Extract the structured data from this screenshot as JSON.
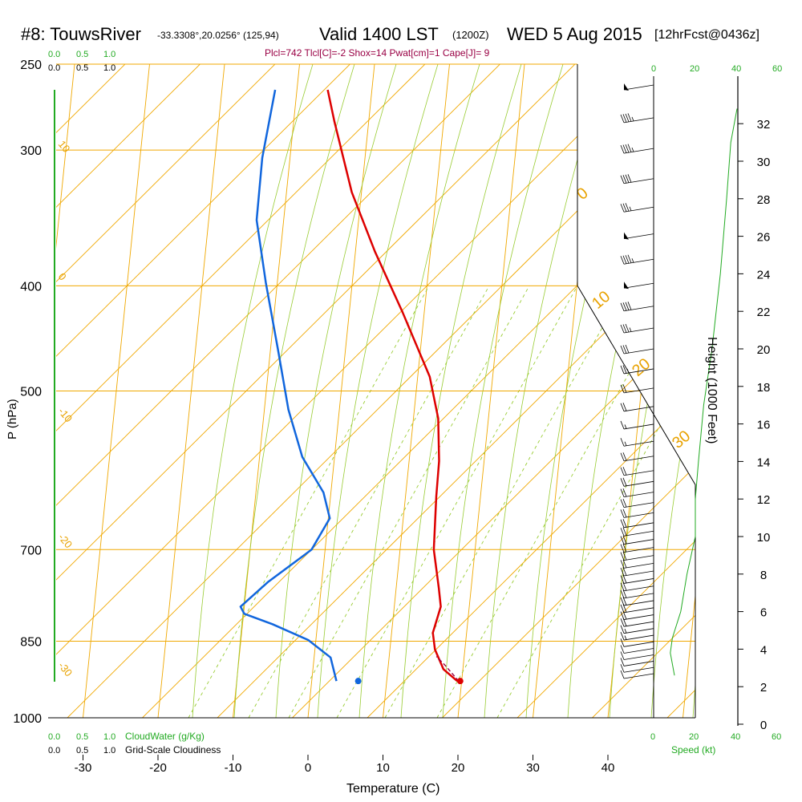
{
  "header": {
    "station": "#8: TouwsRiver",
    "coords": "-33.3308°,20.0256° (125,94)",
    "valid": "Valid 1400 LST",
    "utc": "(1200Z)",
    "date": "WED 5 Aug 2015",
    "forecast": "[12hrFcst@0436z]"
  },
  "indices": "Plcl=742 Tlcl[C]=-2 Shox=14 Pwat[cm]=1 Cape[J]= 9",
  "colors": {
    "temperature": "#dd0000",
    "dewpoint": "#1166dd",
    "isotherm_isobar": "#f0a800",
    "mixing_ratio": "#99cc33",
    "cloud": "#22aa22",
    "parcel": "#990044"
  },
  "scales": {
    "cloudwater_top": [
      "0.0",
      "0.5",
      "1.0"
    ],
    "cloudiness_top": [
      "0.0",
      "0.5",
      "1.0"
    ],
    "cloudwater_bottom": [
      "0.0",
      "0.5",
      "1.0"
    ],
    "cloudiness_bottom": [
      "0.0",
      "0.5",
      "1.0"
    ],
    "cloudwater_label": "CloudWater (g/Kg)",
    "cloudiness_label": "Grid-Scale Cloudiness",
    "speed_top_green": [
      "20",
      "40",
      "60"
    ],
    "speed_top_black": [
      "0"
    ],
    "speed_bottom_black": [
      "0",
      "20",
      "40"
    ],
    "speed_bottom_green": [
      "20",
      "60"
    ],
    "speed_label": "Speed (kt)"
  },
  "chart_data": {
    "type": "line",
    "title": "",
    "xlabel": "Temperature (C)",
    "ylabel": "P (hPa)",
    "y2label": "Height (1000 Feet)",
    "xlim": [
      -35,
      52
    ],
    "ylim": [
      1000,
      250
    ],
    "x_ticks": [
      "-30",
      "-20",
      "-10",
      "0",
      "10",
      "20",
      "30",
      "40"
    ],
    "x_tick_values": [
      -30,
      -20,
      -10,
      0,
      10,
      20,
      30,
      40
    ],
    "p_ticks": [
      "250",
      "300",
      "400",
      "500",
      "700",
      "850",
      "1000"
    ],
    "p_tick_values": [
      250,
      300,
      400,
      500,
      700,
      850,
      1000
    ],
    "height_ticks": [
      "0",
      "2",
      "4",
      "6",
      "8",
      "10",
      "12",
      "14",
      "16",
      "18",
      "20",
      "22",
      "24",
      "26",
      "28",
      "30",
      "32"
    ],
    "height_tick_values": [
      0,
      2,
      4,
      6,
      8,
      10,
      12,
      14,
      16,
      18,
      20,
      22,
      24,
      26,
      28,
      30,
      32
    ],
    "mixing_ratio_labels": [
      "1",
      "2",
      "3",
      "5",
      "8",
      "12",
      "20"
    ],
    "isotherm_labels": [
      "10",
      "0",
      "-10",
      "-20",
      "-30"
    ],
    "adiabat_labels": [
      "0",
      "10",
      "20",
      "30"
    ],
    "series": [
      {
        "name": "Temperature",
        "points": [
          [
            -5.9,
            264
          ],
          [
            -4.6,
            282
          ],
          [
            -1.3,
            328
          ],
          [
            2.6,
            372
          ],
          [
            7.1,
            423
          ],
          [
            11.6,
            485
          ],
          [
            13.3,
            530
          ],
          [
            14,
            580
          ],
          [
            14.1,
            625
          ],
          [
            14.5,
            700
          ],
          [
            15.7,
            760
          ],
          [
            16.2,
            790
          ],
          [
            15.5,
            835
          ],
          [
            16,
            865
          ],
          [
            17.4,
            902
          ],
          [
            19.4,
            925
          ]
        ]
      },
      {
        "name": "Dewpoint",
        "points": [
          [
            -12.9,
            264
          ],
          [
            -13.7,
            305
          ],
          [
            -13.6,
            348
          ],
          [
            -11.5,
            398
          ],
          [
            -9,
            458
          ],
          [
            -6.8,
            520
          ],
          [
            -4.3,
            575
          ],
          [
            -1,
            620
          ],
          [
            0.2,
            655
          ],
          [
            -1.8,
            700
          ],
          [
            -7.2,
            750
          ],
          [
            -10.5,
            790
          ],
          [
            -9.9,
            802
          ],
          [
            -6,
            820
          ],
          [
            -1,
            848
          ],
          [
            2.2,
            880
          ],
          [
            3.3,
            925
          ]
        ]
      }
    ],
    "surface_points": [
      {
        "name": "Surface dewpoint",
        "x": 6.2,
        "p": 925
      },
      {
        "name": "Surface temperature",
        "x": 19.8,
        "p": 925
      }
    ],
    "parcel_path": [
      [
        19.6,
        925
      ],
      [
        17.6,
        895
      ],
      [
        16.3,
        878
      ]
    ],
    "wind_barbs_pressures": [
      264,
      283,
      302,
      322,
      342,
      362,
      382,
      402,
      422,
      442,
      462,
      482,
      502,
      522,
      542,
      562,
      580,
      598,
      612,
      626,
      640,
      654,
      668,
      680,
      692,
      704,
      716,
      728,
      740,
      752,
      764,
      776,
      788,
      800,
      812,
      824,
      836,
      848,
      860,
      872,
      884,
      896,
      908,
      920
    ],
    "wind_barbs_speed_kt": [
      50,
      45,
      45,
      40,
      35,
      50,
      45,
      50,
      40,
      35,
      30,
      25,
      20,
      20,
      15,
      15,
      20,
      20,
      20,
      20,
      20,
      20,
      20,
      20,
      20,
      20,
      20,
      20,
      20,
      20,
      20,
      20,
      20,
      20,
      20,
      20,
      15,
      15,
      10,
      10,
      10,
      10,
      10,
      10
    ],
    "wind_speed_profile_height_kft": [
      [
        32.8,
        40
      ],
      [
        31,
        37
      ],
      [
        28,
        35
      ],
      [
        24,
        32
      ],
      [
        20,
        28
      ],
      [
        17,
        24
      ],
      [
        14,
        21.5
      ],
      [
        12,
        20
      ],
      [
        10,
        20
      ],
      [
        8,
        16
      ],
      [
        6,
        13
      ],
      [
        4.6,
        9
      ],
      [
        3.8,
        8
      ],
      [
        3.2,
        9
      ],
      [
        2.6,
        10
      ]
    ]
  }
}
